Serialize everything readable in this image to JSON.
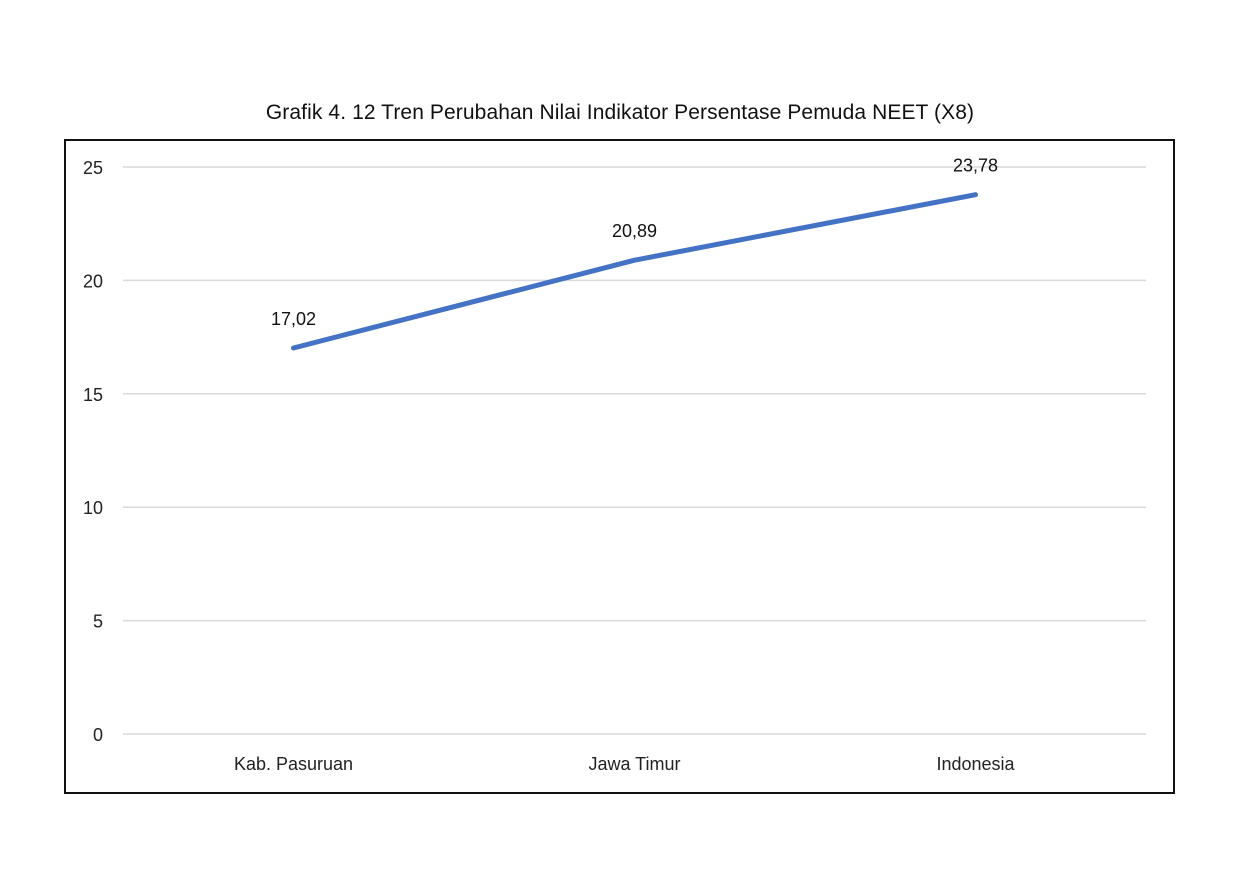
{
  "title": "Grafik 4. 12 Tren Perubahan Nilai Indikator Persentase Pemuda NEET (X8)",
  "chart_data": {
    "type": "line",
    "title": "Grafik 4. 12 Tren Perubahan Nilai Indikator Persentase Pemuda NEET (X8)",
    "categories": [
      "Kab. Pasuruan",
      "Jawa Timur",
      "Indonesia"
    ],
    "series": [
      {
        "name": "Persentase Pemuda NEET",
        "values": [
          17.02,
          20.89,
          23.78
        ],
        "color": "#4472C4"
      }
    ],
    "data_labels": [
      "17,02",
      "20,89",
      "23,78"
    ],
    "xlabel": "",
    "ylabel": "",
    "ylim": [
      0,
      25
    ],
    "yticks": [
      0,
      5,
      10,
      15,
      20,
      25
    ],
    "ytick_labels": [
      "0",
      "5",
      "10",
      "15",
      "20",
      "25"
    ],
    "grid": true,
    "legend": "none"
  },
  "colors": {
    "line": "#4472C4",
    "grid": "#d9d9d9",
    "frame": "#111111"
  }
}
